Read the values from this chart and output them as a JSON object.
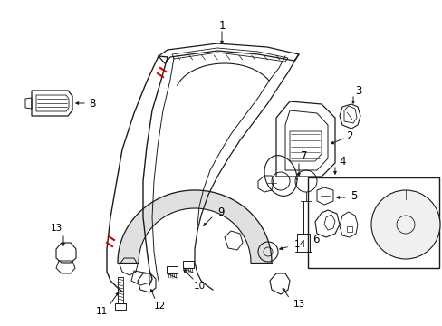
{
  "background_color": "#ffffff",
  "fig_width": 4.89,
  "fig_height": 3.6,
  "dpi": 100,
  "line_color": "#1a1a1a",
  "text_color": "#000000",
  "red_color": "#cc0000",
  "fontsize": 8.5,
  "fontsize_small": 7.5
}
